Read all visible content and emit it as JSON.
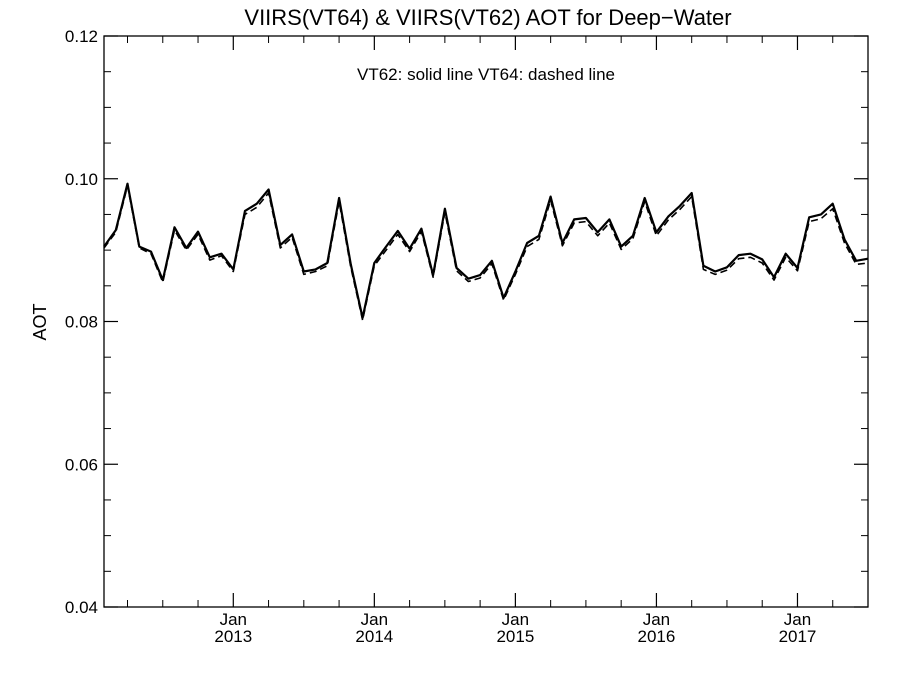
{
  "chart_data": {
    "type": "line",
    "title": "VIIRS(VT64) & VIIRS(VT62)  AOT for Deep−Water",
    "annotation": "VT62: solid line   VT64: dashed line",
    "ylabel": "AOT",
    "xlabel": "",
    "ylim": [
      0.04,
      0.12
    ],
    "y_ticks": [
      {
        "value": 0.04,
        "label": "0.04"
      },
      {
        "value": 0.06,
        "label": "0.06"
      },
      {
        "value": 0.08,
        "label": "0.08"
      },
      {
        "value": 0.1,
        "label": "0.10"
      },
      {
        "value": 0.12,
        "label": "0.12"
      }
    ],
    "xlim": [
      "2012-02",
      "2017-07"
    ],
    "x_ticks": [
      {
        "value": "2013-01",
        "label_month": "Jan",
        "label_year": "2013"
      },
      {
        "value": "2014-01",
        "label_month": "Jan",
        "label_year": "2014"
      },
      {
        "value": "2015-01",
        "label_month": "Jan",
        "label_year": "2015"
      },
      {
        "value": "2016-01",
        "label_month": "Jan",
        "label_year": "2016"
      },
      {
        "value": "2017-01",
        "label_month": "Jan",
        "label_year": "2017"
      }
    ],
    "grid": false,
    "x": [
      "2012-02",
      "2012-03",
      "2012-04",
      "2012-05",
      "2012-06",
      "2012-07",
      "2012-08",
      "2012-09",
      "2012-10",
      "2012-11",
      "2012-12",
      "2013-01",
      "2013-02",
      "2013-03",
      "2013-04",
      "2013-05",
      "2013-06",
      "2013-07",
      "2013-08",
      "2013-09",
      "2013-10",
      "2013-11",
      "2013-12",
      "2014-01",
      "2014-02",
      "2014-03",
      "2014-04",
      "2014-05",
      "2014-06",
      "2014-07",
      "2014-08",
      "2014-09",
      "2014-10",
      "2014-11",
      "2014-12",
      "2015-01",
      "2015-02",
      "2015-03",
      "2015-04",
      "2015-05",
      "2015-06",
      "2015-07",
      "2015-08",
      "2015-09",
      "2015-10",
      "2015-11",
      "2015-12",
      "2016-01",
      "2016-02",
      "2016-03",
      "2016-04",
      "2016-05",
      "2016-06",
      "2016-07",
      "2016-08",
      "2016-09",
      "2016-10",
      "2016-11",
      "2016-12",
      "2017-01",
      "2017-02",
      "2017-03",
      "2017-04",
      "2017-05",
      "2017-06",
      "2017-07"
    ],
    "series": [
      {
        "name": "VT62",
        "style": "solid",
        "color": "#000000",
        "values": [
          0.0905,
          0.0928,
          0.0993,
          0.0905,
          0.0898,
          0.0858,
          0.0932,
          0.0903,
          0.0926,
          0.089,
          0.0895,
          0.0873,
          0.0955,
          0.0965,
          0.0985,
          0.0907,
          0.0922,
          0.087,
          0.0873,
          0.0882,
          0.0973,
          0.088,
          0.0805,
          0.0882,
          0.0905,
          0.0927,
          0.0902,
          0.093,
          0.0865,
          0.0958,
          0.0875,
          0.086,
          0.0865,
          0.0885,
          0.0833,
          0.087,
          0.091,
          0.092,
          0.0975,
          0.091,
          0.0943,
          0.0945,
          0.0925,
          0.0943,
          0.0905,
          0.092,
          0.0973,
          0.0925,
          0.0947,
          0.0962,
          0.098,
          0.0878,
          0.087,
          0.0876,
          0.0893,
          0.0895,
          0.0887,
          0.0862,
          0.0895,
          0.0875,
          0.0946,
          0.095,
          0.0965,
          0.0915,
          0.0885,
          0.0888
        ]
      },
      {
        "name": "VT64",
        "style": "dashed",
        "color": "#000000",
        "values": [
          0.0903,
          0.0925,
          0.099,
          0.0903,
          0.0895,
          0.0855,
          0.0928,
          0.09,
          0.0922,
          0.0886,
          0.0892,
          0.087,
          0.095,
          0.096,
          0.098,
          0.0903,
          0.0918,
          0.0866,
          0.087,
          0.0878,
          0.0968,
          0.0876,
          0.0802,
          0.0878,
          0.09,
          0.0922,
          0.0898,
          0.0926,
          0.0862,
          0.0953,
          0.0871,
          0.0856,
          0.0861,
          0.0881,
          0.083,
          0.0866,
          0.0905,
          0.0915,
          0.097,
          0.0906,
          0.0938,
          0.094,
          0.092,
          0.0938,
          0.0901,
          0.0916,
          0.0968,
          0.092,
          0.0942,
          0.0957,
          0.0975,
          0.0873,
          0.0866,
          0.0872,
          0.0888,
          0.089,
          0.0882,
          0.0858,
          0.089,
          0.0871,
          0.094,
          0.0944,
          0.0958,
          0.091,
          0.088,
          0.0882
        ]
      }
    ]
  }
}
